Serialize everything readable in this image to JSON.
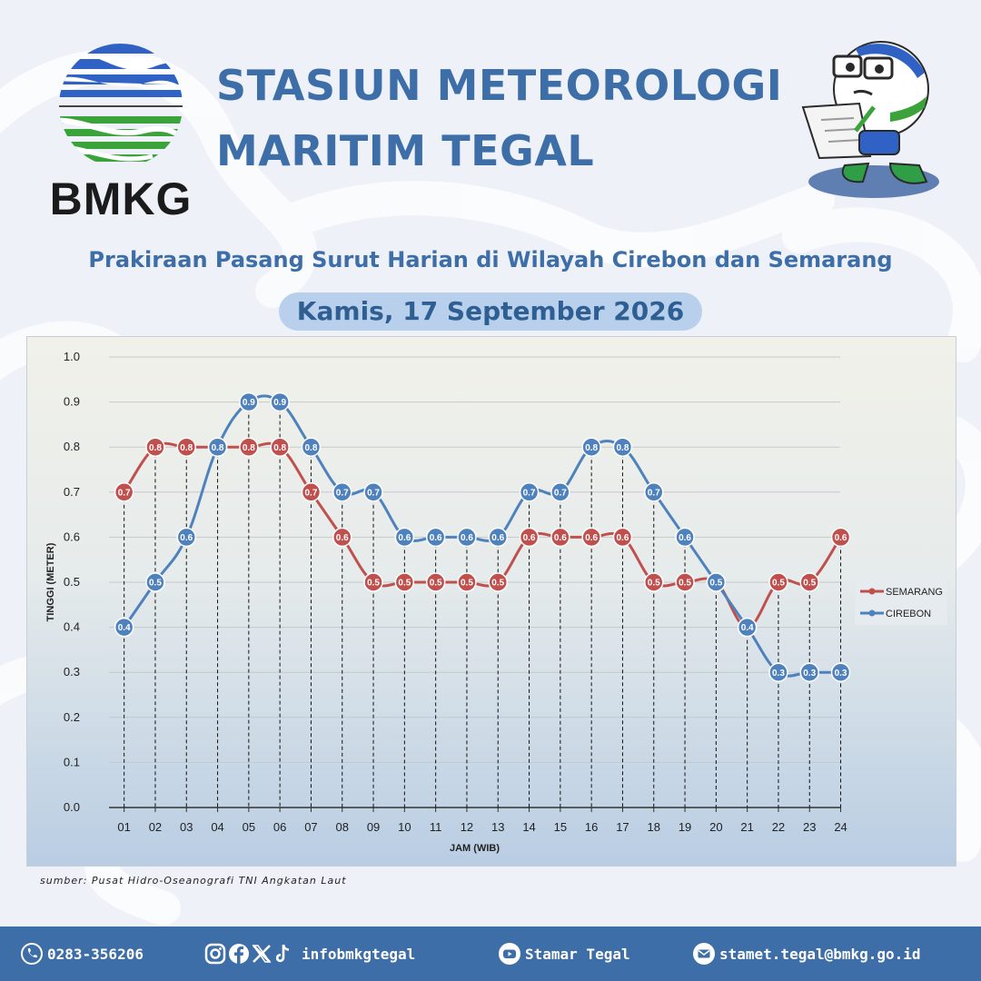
{
  "header": {
    "logo_text": "BMKG",
    "title_line1": "STASIUN METEOROLOGI",
    "title_line2": "MARITIM TEGAL",
    "subtitle": "Prakiraan Pasang Surut Harian di Wilayah Cirebon dan Semarang",
    "date": "Kamis, 17 September 2026"
  },
  "colors": {
    "brand_blue": "#3d6ea8",
    "semarang": "#c0504d",
    "cirebon": "#4f81bd",
    "logo_green": "#3aa33a"
  },
  "chart_data": {
    "type": "line",
    "xlabel": "JAM (WIB)",
    "ylabel": "TINGGI (METER)",
    "ylim": [
      0,
      1.0
    ],
    "yticks": [
      "0.0",
      "0.1",
      "0.2",
      "0.3",
      "0.4",
      "0.5",
      "0.6",
      "0.7",
      "0.8",
      "0.9",
      "1.0"
    ],
    "categories": [
      "01",
      "02",
      "03",
      "04",
      "05",
      "06",
      "07",
      "08",
      "09",
      "10",
      "11",
      "12",
      "13",
      "14",
      "15",
      "16",
      "17",
      "18",
      "19",
      "20",
      "21",
      "22",
      "23",
      "24"
    ],
    "grid": true,
    "legend_position": "right",
    "series": [
      {
        "name": "SEMARANG",
        "color": "#c0504d",
        "values": [
          0.7,
          0.8,
          0.8,
          0.8,
          0.8,
          0.8,
          0.7,
          0.6,
          0.5,
          0.5,
          0.5,
          0.5,
          0.5,
          0.6,
          0.6,
          0.6,
          0.6,
          0.5,
          0.5,
          0.5,
          0.4,
          0.5,
          0.5,
          0.6
        ]
      },
      {
        "name": "CIREBON",
        "color": "#4f81bd",
        "values": [
          0.4,
          0.5,
          0.6,
          0.8,
          0.9,
          0.9,
          0.8,
          0.7,
          0.7,
          0.6,
          0.6,
          0.6,
          0.6,
          0.7,
          0.7,
          0.8,
          0.8,
          0.7,
          0.6,
          0.5,
          0.4,
          0.3,
          0.3,
          0.3
        ]
      }
    ]
  },
  "source_note": "sumber: Pusat Hidro-Oseanografi TNI Angkatan Laut",
  "footer": {
    "phone": "0283-356206",
    "social_handle": "infobmkgtegal",
    "youtube": "Stamar Tegal",
    "email": "stamet.tegal@bmkg.go.id",
    "icons": [
      "phone-icon",
      "instagram-icon",
      "facebook-icon",
      "x-icon",
      "tiktok-icon",
      "youtube-icon",
      "email-icon"
    ]
  }
}
